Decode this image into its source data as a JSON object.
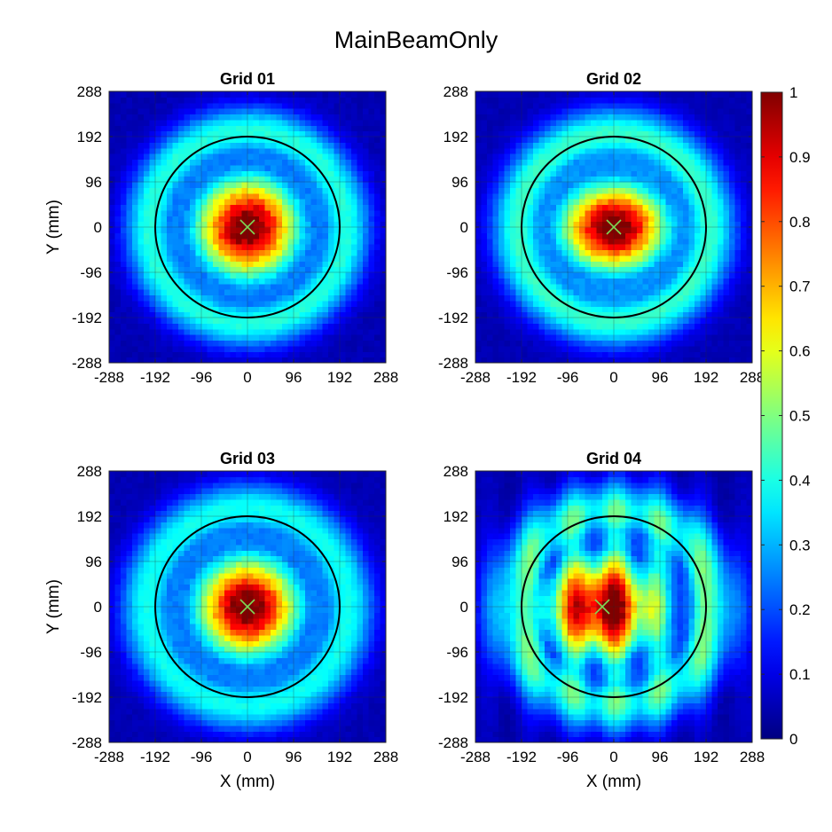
{
  "figure": {
    "title": "MainBeamOnly"
  },
  "chart_data": {
    "type": "heatmap",
    "title": "MainBeamOnly",
    "layout": "2x2",
    "xlabel": "X (mm)",
    "ylabel": "Y (mm)",
    "xlim": [
      -288,
      288
    ],
    "ylim": [
      -288,
      288
    ],
    "grid": true,
    "x_ticks": [
      "-288",
      "-192",
      "-96",
      "0",
      "96",
      "192",
      "288"
    ],
    "y_ticks": [
      "288",
      "192",
      "96",
      "0",
      "-96",
      "-192",
      "-288"
    ],
    "x_tick_values": [
      -288,
      -192,
      -96,
      0,
      96,
      192,
      288
    ],
    "y_tick_values": [
      288,
      192,
      96,
      0,
      -96,
      -192,
      -288
    ],
    "colormap": "jet",
    "colorbar": {
      "range": [
        0,
        1
      ],
      "ticks": [
        "0",
        "0.1",
        "0.2",
        "0.3",
        "0.4",
        "0.5",
        "0.6",
        "0.7",
        "0.8",
        "0.9",
        "1"
      ],
      "tick_values": [
        0,
        0.1,
        0.2,
        0.3,
        0.4,
        0.5,
        0.6,
        0.7,
        0.8,
        0.9,
        1
      ]
    },
    "cell_size_mm": 12,
    "reference_circle_radius_mm": 192,
    "panels": [
      {
        "title": "Grid 01",
        "center_marker_mm": [
          0,
          0
        ],
        "peak": 1.0,
        "core_sigma_mm": [
          75,
          75
        ],
        "ring_radius_mm": 205,
        "ring_width_mm": 38,
        "ring_level": 0.36,
        "plateau_level": 0.2,
        "stripe_amp": 0.0,
        "noise": 0.08
      },
      {
        "title": "Grid 02",
        "center_marker_mm": [
          0,
          0
        ],
        "peak": 1.0,
        "core_sigma_mm": [
          78,
          66
        ],
        "ring_radius_mm": 200,
        "ring_width_mm": 40,
        "ring_level": 0.38,
        "plateau_level": 0.22,
        "stripe_amp": 0.0,
        "noise": 0.07
      },
      {
        "title": "Grid 03",
        "center_marker_mm": [
          0,
          0
        ],
        "peak": 1.0,
        "core_sigma_mm": [
          74,
          74
        ],
        "ring_radius_mm": 210,
        "ring_width_mm": 40,
        "ring_level": 0.34,
        "plateau_level": 0.2,
        "stripe_amp": 0.0,
        "noise": 0.07
      },
      {
        "title": "Grid 04",
        "center_marker_mm": [
          -24,
          0
        ],
        "peak": 0.95,
        "core_sigma_mm": [
          88,
          78
        ],
        "ring_radius_mm": 205,
        "ring_width_mm": 44,
        "ring_level": 0.38,
        "plateau_level": 0.24,
        "stripe_amp": 0.14,
        "noise": 0.06
      }
    ]
  }
}
